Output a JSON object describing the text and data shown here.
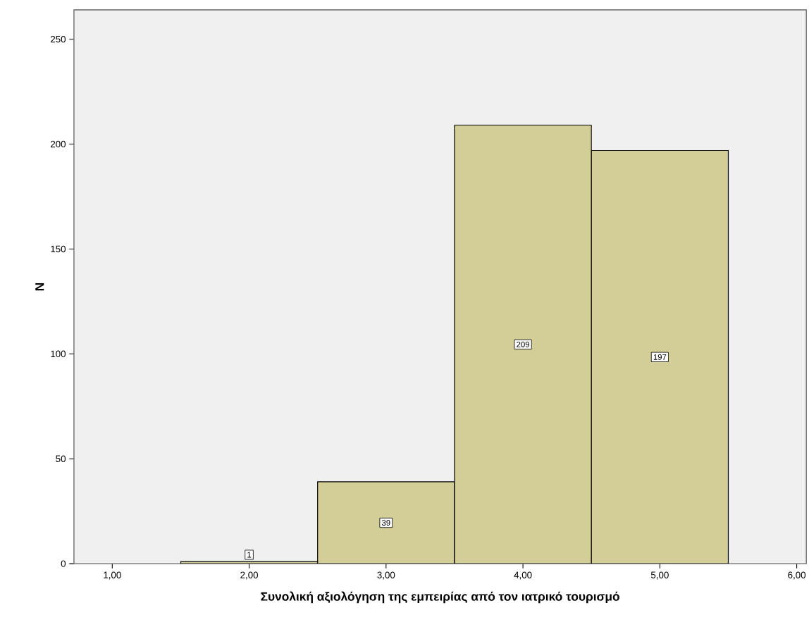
{
  "chart_data": {
    "type": "histogram",
    "xlabel": "Συνολική αξιολόγηση της εμπειρίας από τον ιατρικό τουρισμό",
    "ylabel": "N",
    "bins": [
      1.5,
      2.5,
      3.5,
      4.5,
      5.5
    ],
    "values": [
      1,
      39,
      209,
      197
    ],
    "color": "#d3ce98",
    "data_labels": true,
    "xlim": [
      0.72,
      6.07
    ],
    "ylim": [
      0,
      264
    ],
    "xticks": [
      {
        "value": 1,
        "label": "1,00"
      },
      {
        "value": 2,
        "label": "2,00"
      },
      {
        "value": 3,
        "label": "3,00"
      },
      {
        "value": 4,
        "label": "4,00"
      },
      {
        "value": 5,
        "label": "5,00"
      },
      {
        "value": 6,
        "label": "6,00"
      }
    ],
    "yticks": [
      0,
      50,
      100,
      150,
      200,
      250
    ]
  }
}
